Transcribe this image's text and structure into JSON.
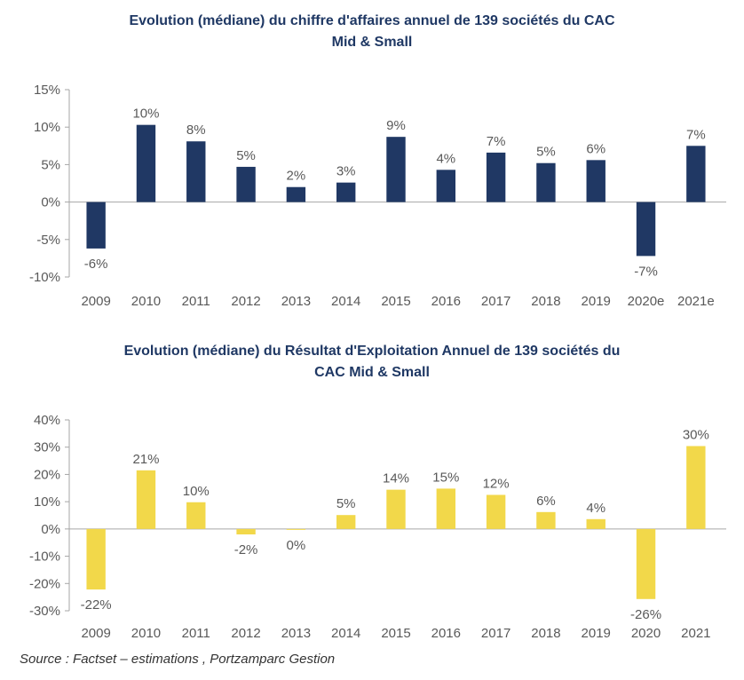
{
  "charts": [
    {
      "id": "chart1",
      "title_line1": "Evolution (médiane) du chiffre d'affaires annuel de 139 sociétés du CAC",
      "title_line2": "Mid & Small"
    },
    {
      "id": "chart2",
      "title_line1": "Evolution (médiane) du Résultat d'Exploitation Annuel de 139 sociétés du",
      "title_line2": "CAC Mid & Small"
    }
  ],
  "source": "Source : Factset – estimations , Portzamparc Gestion",
  "chart_data": [
    {
      "type": "bar",
      "title": "Evolution (médiane) du chiffre d'affaires annuel de 139 sociétés du CAC Mid & Small",
      "categories": [
        "2009",
        "2010",
        "2011",
        "2012",
        "2013",
        "2014",
        "2015",
        "2016",
        "2017",
        "2018",
        "2019",
        "2020e",
        "2021e"
      ],
      "values": [
        -6.2,
        10.3,
        8.1,
        4.7,
        2.0,
        2.6,
        8.7,
        4.3,
        6.6,
        5.2,
        5.6,
        -7.2,
        7.5
      ],
      "data_labels": [
        "-6%",
        "10%",
        "8%",
        "5%",
        "2%",
        "3%",
        "9%",
        "4%",
        "7%",
        "5%",
        "6%",
        "-7%",
        "7%"
      ],
      "ylim": [
        -10,
        15
      ],
      "yticks": [
        -10,
        -5,
        0,
        5,
        10,
        15
      ],
      "ytick_labels": [
        "-10%",
        "-5%",
        "0%",
        "5%",
        "10%",
        "15%"
      ],
      "color": "#203864",
      "grid": false,
      "legend": "none",
      "xlabel": "",
      "ylabel": ""
    },
    {
      "type": "bar",
      "title": "Evolution (médiane) du Résultat d'Exploitation Annuel de 139 sociétés du CAC Mid & Small",
      "categories": [
        "2009",
        "2010",
        "2011",
        "2012",
        "2013",
        "2014",
        "2015",
        "2016",
        "2017",
        "2018",
        "2019",
        "2020",
        "2021"
      ],
      "values": [
        -22.2,
        21.5,
        9.8,
        -2.0,
        -0.3,
        5.1,
        14.4,
        14.8,
        12.5,
        6.2,
        3.6,
        -25.7,
        30.4
      ],
      "data_labels": [
        "-22%",
        "21%",
        "10%",
        "-2%",
        "0%",
        "5%",
        "14%",
        "15%",
        "12%",
        "6%",
        "4%",
        "-26%",
        "30%"
      ],
      "ylim": [
        -30,
        40
      ],
      "yticks": [
        -30,
        -20,
        -10,
        0,
        10,
        20,
        30,
        40
      ],
      "ytick_labels": [
        "-30%",
        "-20%",
        "-10%",
        "0%",
        "10%",
        "20%",
        "30%",
        "40%"
      ],
      "color": "#f2d84a",
      "grid": false,
      "legend": "none",
      "xlabel": "",
      "ylabel": ""
    }
  ]
}
